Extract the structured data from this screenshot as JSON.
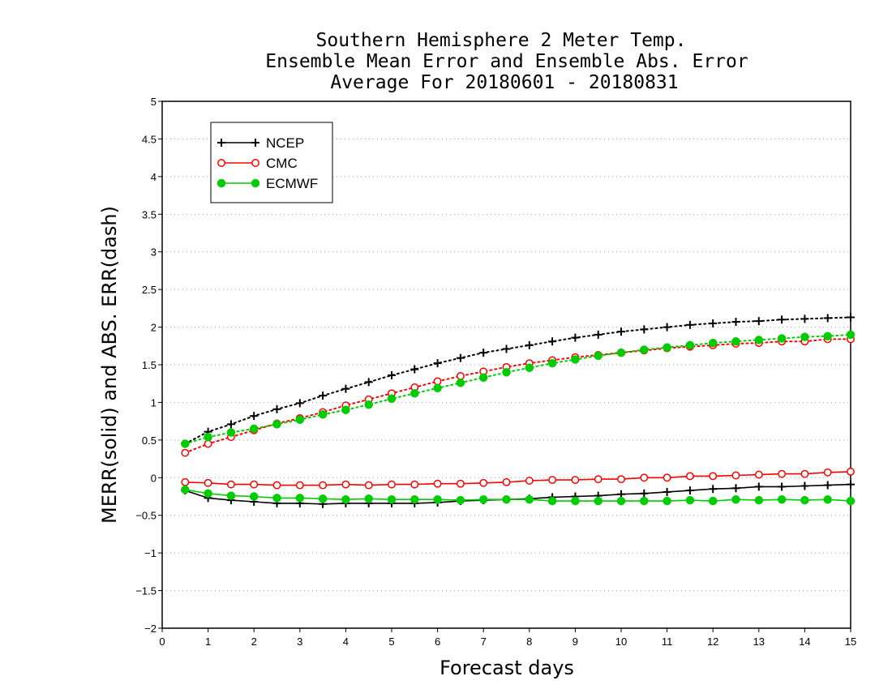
{
  "chart_data": {
    "type": "line",
    "title_lines": [
      "Southern Hemisphere 2 Meter Temp.",
      "Ensemble Mean Error and Ensemble Abs. Error",
      "Average For 20180601 - 20180831"
    ],
    "xlabel": "Forecast days",
    "ylabel": "MERR(solid) and ABS. ERR(dash)",
    "xlim": [
      0,
      15
    ],
    "ylim": [
      -2,
      5
    ],
    "x_ticks": [
      "0",
      "1",
      "2",
      "3",
      "4",
      "5",
      "6",
      "7",
      "8",
      "9",
      "10",
      "11",
      "12",
      "13",
      "14",
      "15"
    ],
    "y_ticks": [
      "−2",
      "−1.5",
      "−1",
      "−0.5",
      "0",
      "0.5",
      "1",
      "1.5",
      "2",
      "2.5",
      "3",
      "3.5",
      "4",
      "4.5",
      "5"
    ],
    "grid": "horizontal dotted",
    "legend_position": "top-left",
    "x": [
      0.5,
      1,
      1.5,
      2,
      2.5,
      3,
      3.5,
      4,
      4.5,
      5,
      5.5,
      6,
      6.5,
      7,
      7.5,
      8,
      8.5,
      9,
      9.5,
      10,
      10.5,
      11,
      11.5,
      12,
      12.5,
      13,
      13.5,
      14,
      14.5,
      15
    ],
    "series": [
      {
        "name": "NCEP",
        "color": "#000000",
        "marker": "plus",
        "mean_error": [
          -0.17,
          -0.27,
          -0.3,
          -0.32,
          -0.34,
          -0.34,
          -0.35,
          -0.34,
          -0.34,
          -0.34,
          -0.34,
          -0.33,
          -0.31,
          -0.3,
          -0.29,
          -0.28,
          -0.26,
          -0.25,
          -0.24,
          -0.22,
          -0.21,
          -0.19,
          -0.17,
          -0.15,
          -0.14,
          -0.12,
          -0.12,
          -0.11,
          -0.1,
          -0.09
        ],
        "abs_error": [
          0.45,
          0.61,
          0.71,
          0.82,
          0.91,
          0.99,
          1.09,
          1.18,
          1.27,
          1.36,
          1.44,
          1.52,
          1.59,
          1.66,
          1.71,
          1.76,
          1.81,
          1.86,
          1.9,
          1.94,
          1.97,
          2.0,
          2.03,
          2.05,
          2.07,
          2.08,
          2.1,
          2.11,
          2.12,
          2.13
        ]
      },
      {
        "name": "CMC",
        "color": "#ff0000",
        "marker": "open-circle",
        "mean_error": [
          -0.06,
          -0.07,
          -0.09,
          -0.09,
          -0.1,
          -0.1,
          -0.1,
          -0.09,
          -0.1,
          -0.09,
          -0.09,
          -0.08,
          -0.08,
          -0.07,
          -0.06,
          -0.04,
          -0.03,
          -0.03,
          -0.02,
          -0.02,
          0.0,
          0.0,
          0.02,
          0.02,
          0.03,
          0.04,
          0.05,
          0.05,
          0.07,
          0.08
        ],
        "abs_error": [
          0.33,
          0.45,
          0.54,
          0.63,
          0.72,
          0.79,
          0.87,
          0.96,
          1.04,
          1.12,
          1.2,
          1.28,
          1.35,
          1.41,
          1.47,
          1.52,
          1.56,
          1.6,
          1.63,
          1.66,
          1.69,
          1.72,
          1.74,
          1.76,
          1.78,
          1.79,
          1.81,
          1.81,
          1.84,
          1.84
        ]
      },
      {
        "name": "ECMWF",
        "color": "#00cc00",
        "marker": "filled-circle",
        "mean_error": [
          -0.16,
          -0.21,
          -0.24,
          -0.25,
          -0.27,
          -0.27,
          -0.28,
          -0.29,
          -0.28,
          -0.29,
          -0.29,
          -0.29,
          -0.3,
          -0.29,
          -0.29,
          -0.29,
          -0.31,
          -0.31,
          -0.31,
          -0.31,
          -0.31,
          -0.31,
          -0.3,
          -0.31,
          -0.29,
          -0.3,
          -0.29,
          -0.3,
          -0.29,
          -0.31
        ],
        "abs_error": [
          0.45,
          0.54,
          0.6,
          0.65,
          0.71,
          0.77,
          0.84,
          0.9,
          0.97,
          1.05,
          1.12,
          1.19,
          1.26,
          1.33,
          1.4,
          1.46,
          1.52,
          1.57,
          1.62,
          1.66,
          1.7,
          1.73,
          1.76,
          1.79,
          1.81,
          1.83,
          1.85,
          1.87,
          1.88,
          1.9
        ]
      }
    ]
  }
}
